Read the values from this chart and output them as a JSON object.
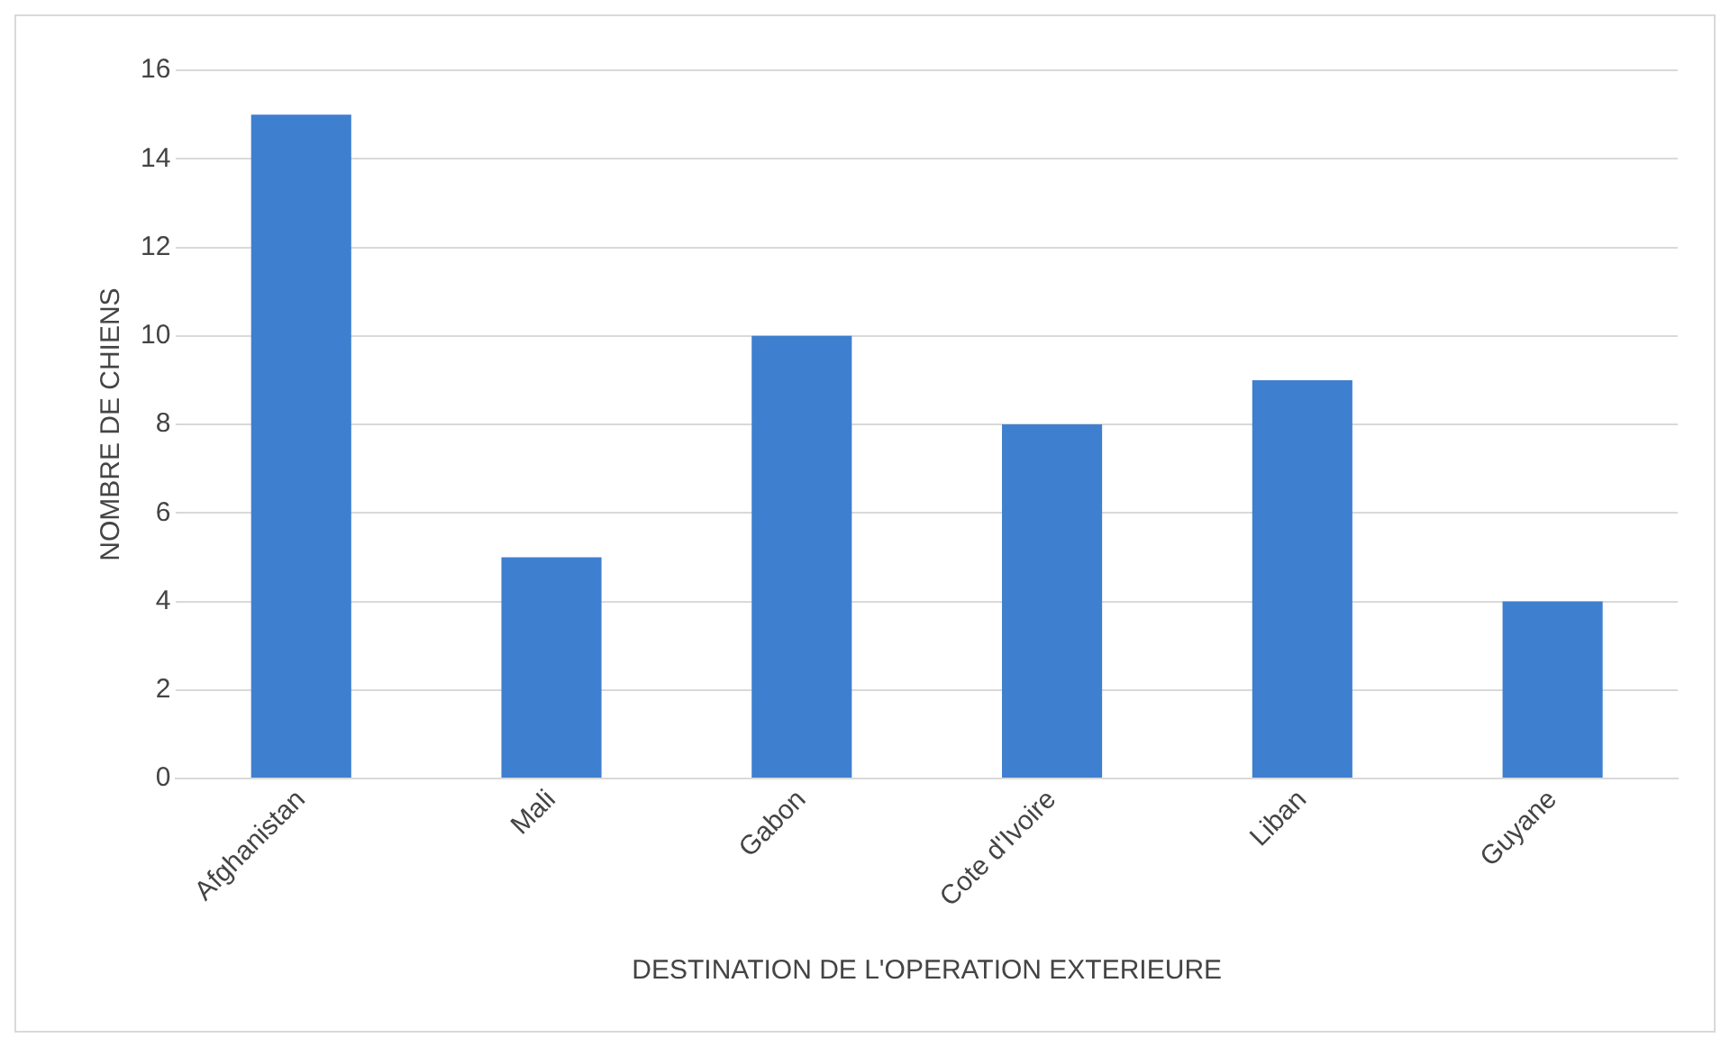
{
  "chart_data": {
    "type": "bar",
    "xlabel": "DESTINATION DE L'OPERATION EXTERIEURE",
    "ylabel": "NOMBRE DE CHIENS",
    "categories": [
      "Afghanistan",
      "Mali",
      "Gabon",
      "Cote d'Ivoire",
      "Liban",
      "Guyane"
    ],
    "values": [
      15,
      5,
      10,
      8,
      9,
      4
    ],
    "color": "#3f7fcf",
    "ylim": [
      0,
      16
    ],
    "yticks": [
      0,
      2,
      4,
      6,
      8,
      10,
      12,
      14,
      16
    ],
    "grid": "y",
    "legend": false
  }
}
